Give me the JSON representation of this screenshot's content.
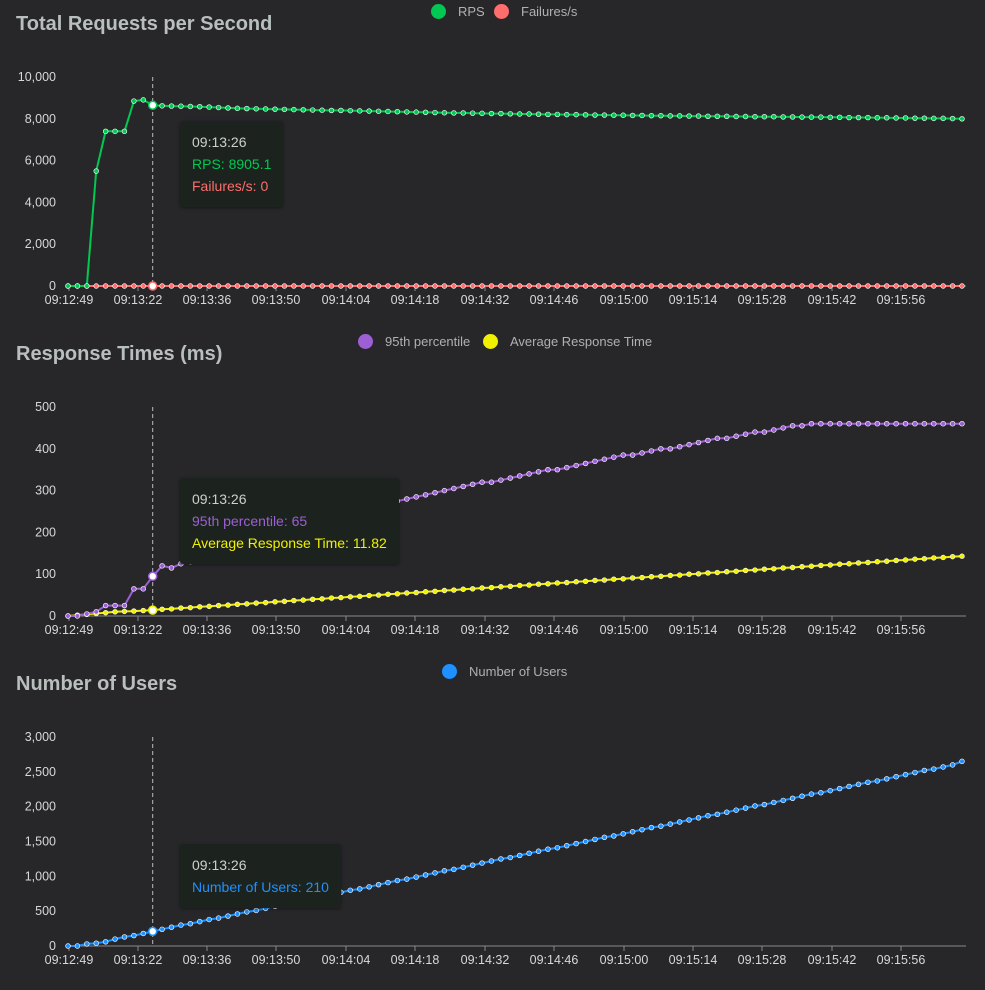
{
  "chart_data": [
    {
      "id": "rps",
      "type": "line",
      "title": "Total Requests per Second",
      "x_tick_labels": [
        "09:12:49",
        "09:13:22",
        "09:13:36",
        "09:13:50",
        "09:14:04",
        "09:14:18",
        "09:14:32",
        "09:14:46",
        "09:15:00",
        "09:15:14",
        "09:15:28",
        "09:15:42",
        "09:15:56"
      ],
      "y_ticks": [
        0,
        2000,
        4000,
        6000,
        8000,
        10000
      ],
      "y_tick_labels": [
        "0",
        "2,000",
        "4,000",
        "6,000",
        "8,000",
        "10,000"
      ],
      "ylim": [
        0,
        10000
      ],
      "legend_position": "top-center",
      "series": [
        {
          "name": "RPS",
          "color": "#00c853",
          "values": [
            0,
            0,
            0,
            5500,
            7400,
            7400,
            7400,
            8850,
            8905.1,
            8650,
            8620,
            8610,
            8600,
            8590,
            8580,
            8560,
            8540,
            8520,
            8500,
            8490,
            8480,
            8470,
            8460,
            8450,
            8440,
            8430,
            8420,
            8410,
            8400,
            8400,
            8390,
            8380,
            8370,
            8360,
            8350,
            8340,
            8330,
            8320,
            8310,
            8300,
            8290,
            8280,
            8280,
            8270,
            8260,
            8250,
            8250,
            8240,
            8230,
            8230,
            8220,
            8210,
            8210,
            8200,
            8200,
            8190,
            8180,
            8180,
            8170,
            8170,
            8160,
            8160,
            8150,
            8150,
            8140,
            8140,
            8130,
            8130,
            8120,
            8120,
            8120,
            8110,
            8110,
            8100,
            8100,
            8100,
            8090,
            8090,
            8080,
            8080,
            8080,
            8070,
            8070,
            8060,
            8060,
            8060,
            8050,
            8050,
            8040,
            8040,
            8030,
            8030,
            8020,
            8020,
            8010,
            8000
          ]
        },
        {
          "name": "Failures/s",
          "color": "#ff6d6d",
          "values": [
            0,
            0,
            0,
            0,
            0,
            0,
            0,
            0,
            0,
            0,
            0,
            0,
            0,
            0,
            0,
            0,
            0,
            0,
            0,
            0,
            0,
            0,
            0,
            0,
            0,
            0,
            0,
            0,
            0,
            0,
            0,
            0,
            0,
            0,
            0,
            0,
            0,
            0,
            0,
            0,
            0,
            0,
            0,
            0,
            0,
            0,
            0,
            0,
            0,
            0,
            0,
            0,
            0,
            0,
            0,
            0,
            0,
            0,
            0,
            0,
            0,
            0,
            0,
            0,
            0,
            0,
            0,
            0,
            0,
            0,
            0,
            0,
            0,
            0,
            0,
            0,
            0,
            0,
            0,
            0,
            0,
            0,
            0,
            0,
            0,
            0,
            0,
            0,
            0,
            0,
            0,
            0,
            0,
            0,
            0,
            0
          ]
        }
      ],
      "tooltip": {
        "time": "09:13:26",
        "lines": [
          {
            "label": "RPS: 8905.1",
            "color": "#00c853"
          },
          {
            "label": "Failures/s: 0",
            "color": "#ff6d6d"
          }
        ]
      }
    },
    {
      "id": "response",
      "type": "line",
      "title": "Response Times (ms)",
      "x_tick_labels": [
        "09:12:49",
        "09:13:22",
        "09:13:36",
        "09:13:50",
        "09:14:04",
        "09:14:18",
        "09:14:32",
        "09:14:46",
        "09:15:00",
        "09:15:14",
        "09:15:28",
        "09:15:42",
        "09:15:56"
      ],
      "y_ticks": [
        0,
        100,
        200,
        300,
        400,
        500
      ],
      "y_tick_labels": [
        "0",
        "100",
        "200",
        "300",
        "400",
        "500"
      ],
      "ylim": [
        0,
        500
      ],
      "legend_position": "top-center",
      "series": [
        {
          "name": "95th percentile",
          "color": "#9c5fd4",
          "values": [
            0,
            0,
            5,
            10,
            25,
            25,
            25,
            65,
            65,
            95,
            120,
            115,
            125,
            130,
            140,
            150,
            160,
            170,
            180,
            190,
            200,
            205,
            210,
            220,
            225,
            230,
            230,
            235,
            240,
            240,
            250,
            255,
            260,
            265,
            270,
            275,
            280,
            285,
            290,
            295,
            300,
            305,
            310,
            315,
            320,
            320,
            325,
            330,
            335,
            340,
            345,
            350,
            350,
            355,
            360,
            365,
            370,
            375,
            380,
            385,
            385,
            390,
            395,
            400,
            400,
            405,
            410,
            415,
            420,
            425,
            425,
            430,
            435,
            440,
            440,
            445,
            450,
            455,
            455,
            460,
            460,
            460,
            460,
            460,
            460,
            460,
            460,
            460,
            460,
            460,
            460,
            460,
            460,
            460,
            460,
            460
          ]
        },
        {
          "name": "Average Response Time",
          "color": "#f0f000",
          "values": [
            0,
            2,
            4,
            6,
            8,
            10,
            11,
            11.82,
            13,
            14,
            16,
            17,
            19,
            20,
            22,
            23,
            25,
            26,
            28,
            29,
            31,
            32,
            34,
            35,
            37,
            38,
            40,
            41,
            43,
            44,
            46,
            47,
            49,
            50,
            52,
            53,
            55,
            56,
            58,
            59,
            61,
            62,
            64,
            65,
            67,
            68,
            70,
            71,
            73,
            74,
            76,
            77,
            79,
            80,
            82,
            83,
            85,
            86,
            88,
            89,
            91,
            92,
            94,
            95,
            97,
            98,
            100,
            101,
            103,
            104,
            106,
            107,
            109,
            110,
            112,
            113,
            115,
            116,
            118,
            119,
            121,
            122,
            124,
            125,
            127,
            128,
            130,
            131,
            133,
            134,
            136,
            137,
            139,
            140,
            142,
            143
          ]
        }
      ],
      "tooltip": {
        "time": "09:13:26",
        "lines": [
          {
            "label": "95th percentile: 65",
            "color": "#9c5fd4"
          },
          {
            "label": "Average Response Time: 11.82",
            "color": "#f0f000"
          }
        ]
      }
    },
    {
      "id": "users",
      "type": "line",
      "title": "Number of Users",
      "x_tick_labels": [
        "09:12:49",
        "09:13:22",
        "09:13:36",
        "09:13:50",
        "09:14:04",
        "09:14:18",
        "09:14:32",
        "09:14:46",
        "09:15:00",
        "09:15:14",
        "09:15:28",
        "09:15:42",
        "09:15:56"
      ],
      "y_ticks": [
        0,
        500,
        1000,
        1500,
        2000,
        2500,
        3000
      ],
      "y_tick_labels": [
        "0",
        "500",
        "1,000",
        "1,500",
        "2,000",
        "2,500",
        "3,000"
      ],
      "ylim": [
        0,
        3000
      ],
      "legend_position": "top-center",
      "series": [
        {
          "name": "Number of Users",
          "color": "#1e90ff",
          "values": [
            0,
            0,
            30,
            40,
            60,
            100,
            130,
            150,
            180,
            210,
            240,
            270,
            300,
            320,
            350,
            380,
            400,
            430,
            460,
            490,
            510,
            540,
            570,
            600,
            620,
            650,
            680,
            710,
            740,
            770,
            800,
            820,
            850,
            880,
            910,
            940,
            960,
            990,
            1020,
            1050,
            1080,
            1100,
            1130,
            1160,
            1190,
            1220,
            1250,
            1270,
            1300,
            1330,
            1360,
            1390,
            1410,
            1440,
            1470,
            1500,
            1530,
            1560,
            1580,
            1610,
            1640,
            1670,
            1700,
            1720,
            1750,
            1780,
            1810,
            1840,
            1870,
            1890,
            1920,
            1950,
            1980,
            2010,
            2030,
            2060,
            2090,
            2120,
            2150,
            2180,
            2200,
            2230,
            2260,
            2290,
            2320,
            2350,
            2370,
            2400,
            2430,
            2460,
            2490,
            2520,
            2540,
            2570,
            2600,
            2650
          ]
        }
      ],
      "tooltip": {
        "time": "09:13:26",
        "lines": [
          {
            "label": "Number of Users: 210",
            "color": "#1e90ff"
          }
        ]
      }
    }
  ]
}
